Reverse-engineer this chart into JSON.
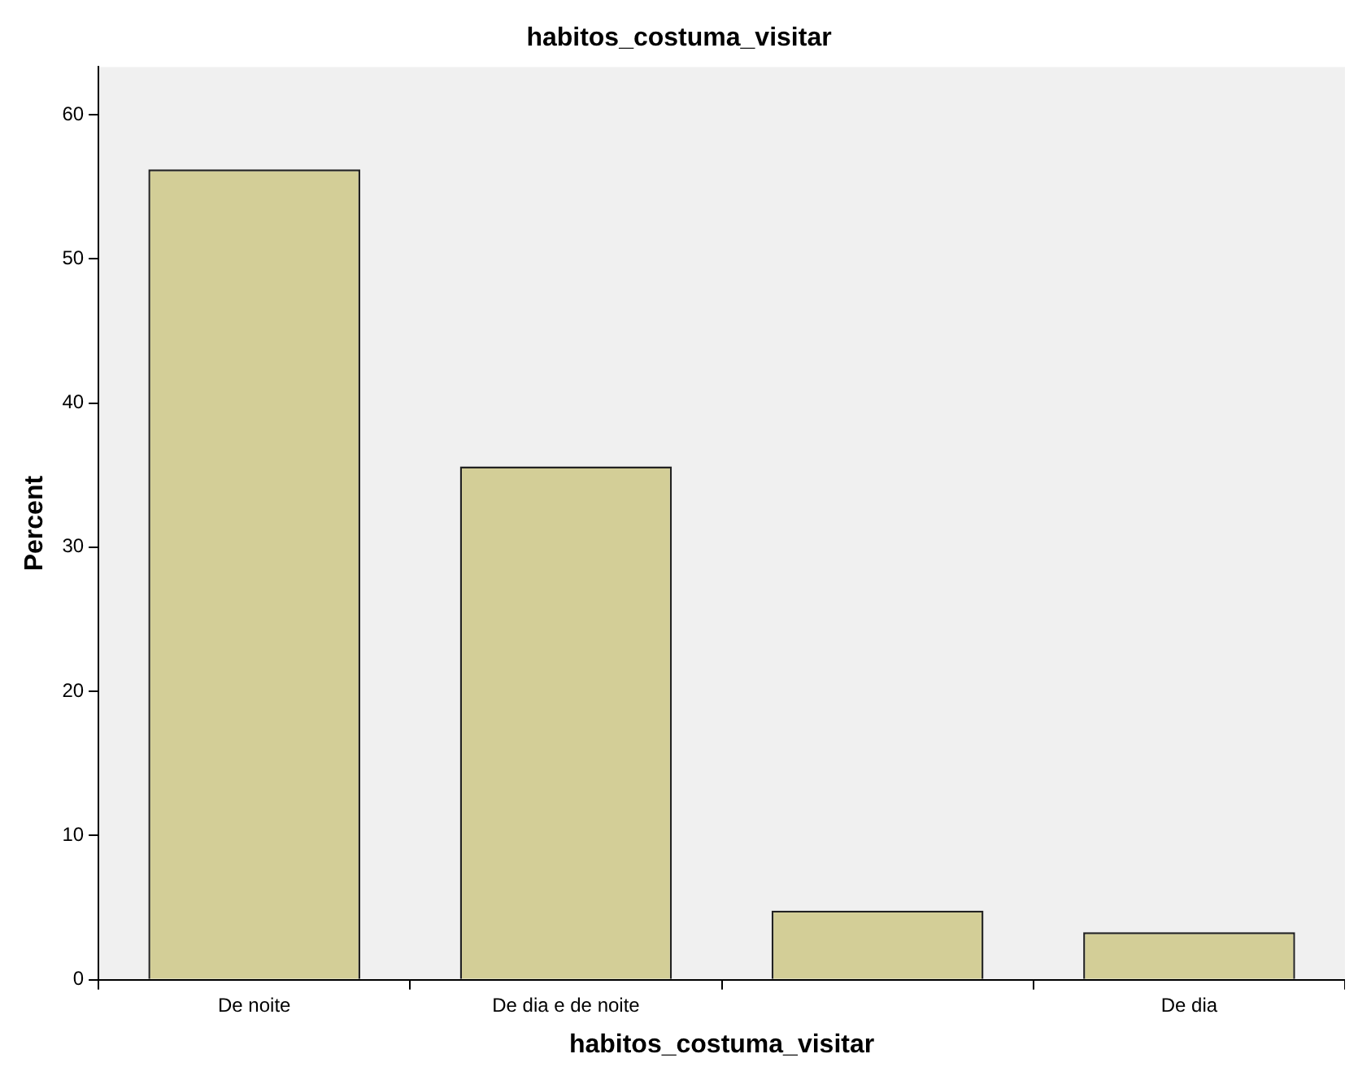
{
  "chart_data": {
    "type": "bar",
    "title": "habitos_costuma_visitar",
    "xlabel": "habitos_costuma_visitar",
    "ylabel": "Percent",
    "categories": [
      "De noite",
      "De dia e de noite",
      null,
      "De dia"
    ],
    "values": [
      56.2,
      35.6,
      4.8,
      3.3
    ],
    "color": "#d3ce97",
    "ylim": [
      0,
      63.3
    ],
    "yticks": [
      0,
      10,
      20,
      30,
      40,
      50,
      60
    ],
    "grid": false
  }
}
